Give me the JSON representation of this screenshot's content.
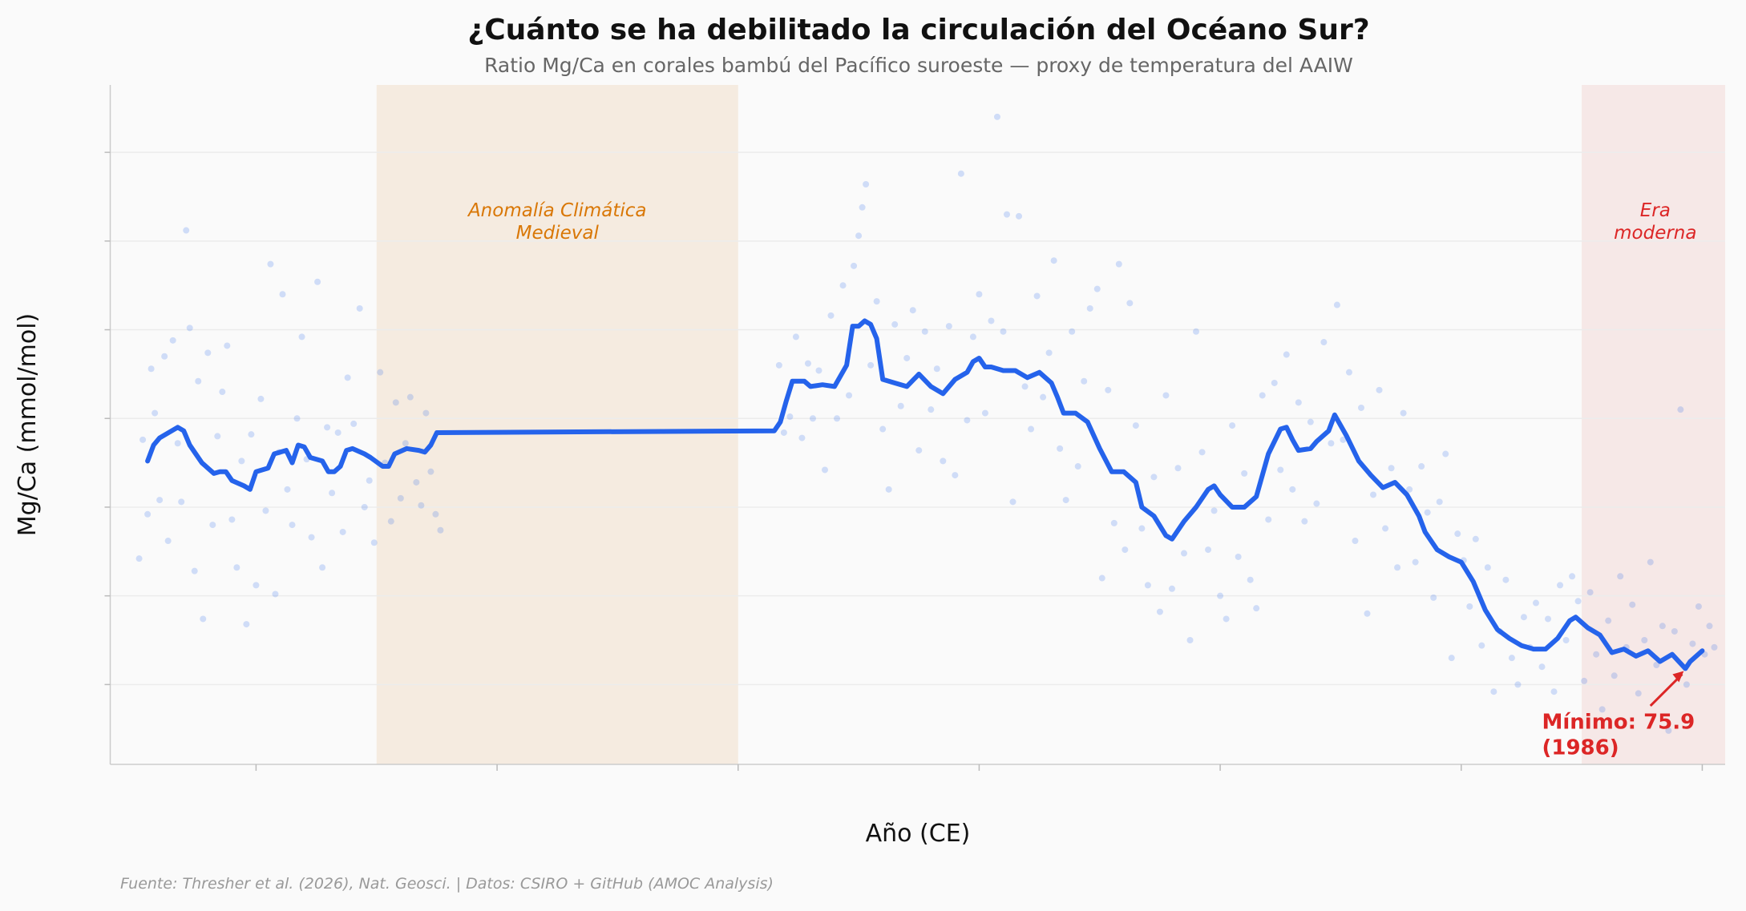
{
  "chart_data": {
    "type": "line",
    "title": "¿Cuánto se ha debilitado la circulación del Océano Sur?",
    "subtitle": "Ratio Mg/Ca en corales bambú del Pacífico suroeste — proxy de temperatura del AAIW",
    "xlabel": "Año (CE)",
    "ylabel": "Mg/Ca (mmol/mol)",
    "xlim": [
      679,
      2019
    ],
    "ylim": [
      70.5,
      108.8
    ],
    "xticks": [
      "800",
      "1000",
      "1200",
      "1400",
      "1600",
      "1800",
      "2000"
    ],
    "yticks": [
      "75",
      "80",
      "85",
      "90",
      "95",
      "100",
      "105"
    ],
    "grid": "horizontal",
    "colors": {
      "line": "#2563eb",
      "points": "#2563eb",
      "medieval": "#f5ebe0",
      "medieval_text": "#d97706",
      "modern": "#f6e8e7",
      "modern_text": "#dc2626",
      "annotation": "#dc2626"
    },
    "spans": [
      {
        "label": "Anomalía Climática\nMedieval",
        "from": 900,
        "to": 1200
      },
      {
        "label": "Era\nmoderna",
        "from": 1900,
        "to": 2019
      }
    ],
    "annotation": {
      "text": "Mínimo: 75.9\n(1986)",
      "x": 1986,
      "y": 75.9
    },
    "footer": "Fuente: Thresher et al. (2026), Nat. Geosci. | Datos: CSIRO + GitHub (AMOC Analysis)",
    "smoothed": [
      [
        710,
        87.6
      ],
      [
        715,
        88.5
      ],
      [
        720,
        88.9
      ],
      [
        730,
        89.3
      ],
      [
        735,
        89.5
      ],
      [
        740,
        89.3
      ],
      [
        745,
        88.5
      ],
      [
        750,
        88.0
      ],
      [
        755,
        87.5
      ],
      [
        760,
        87.2
      ],
      [
        765,
        86.9
      ],
      [
        770,
        87.0
      ],
      [
        775,
        87.0
      ],
      [
        780,
        86.5
      ],
      [
        790,
        86.2
      ],
      [
        795,
        86.0
      ],
      [
        800,
        87.0
      ],
      [
        810,
        87.2
      ],
      [
        815,
        88.0
      ],
      [
        825,
        88.2
      ],
      [
        830,
        87.5
      ],
      [
        835,
        88.5
      ],
      [
        840,
        88.4
      ],
      [
        845,
        87.8
      ],
      [
        855,
        87.6
      ],
      [
        860,
        87.0
      ],
      [
        865,
        87.0
      ],
      [
        870,
        87.3
      ],
      [
        875,
        88.2
      ],
      [
        880,
        88.3
      ],
      [
        890,
        88.0
      ],
      [
        895,
        87.8
      ],
      [
        905,
        87.3
      ],
      [
        910,
        87.3
      ],
      [
        915,
        88.0
      ],
      [
        925,
        88.3
      ],
      [
        935,
        88.2
      ],
      [
        940,
        88.1
      ],
      [
        945,
        88.5
      ],
      [
        950,
        89.2
      ],
      [
        1230,
        89.3
      ],
      [
        1235,
        89.8
      ],
      [
        1240,
        91.0
      ],
      [
        1245,
        92.1
      ],
      [
        1255,
        92.1
      ],
      [
        1260,
        91.8
      ],
      [
        1270,
        91.9
      ],
      [
        1280,
        91.8
      ],
      [
        1290,
        93.0
      ],
      [
        1295,
        95.2
      ],
      [
        1300,
        95.2
      ],
      [
        1305,
        95.5
      ],
      [
        1310,
        95.3
      ],
      [
        1315,
        94.5
      ],
      [
        1320,
        92.2
      ],
      [
        1330,
        92.0
      ],
      [
        1340,
        91.8
      ],
      [
        1350,
        92.5
      ],
      [
        1360,
        91.8
      ],
      [
        1370,
        91.4
      ],
      [
        1380,
        92.2
      ],
      [
        1390,
        92.6
      ],
      [
        1395,
        93.2
      ],
      [
        1400,
        93.4
      ],
      [
        1405,
        92.9
      ],
      [
        1410,
        92.9
      ],
      [
        1420,
        92.7
      ],
      [
        1430,
        92.7
      ],
      [
        1440,
        92.3
      ],
      [
        1450,
        92.6
      ],
      [
        1460,
        92.0
      ],
      [
        1465,
        91.2
      ],
      [
        1470,
        90.3
      ],
      [
        1480,
        90.3
      ],
      [
        1490,
        89.8
      ],
      [
        1500,
        88.3
      ],
      [
        1510,
        87.0
      ],
      [
        1520,
        87.0
      ],
      [
        1530,
        86.4
      ],
      [
        1535,
        85.0
      ],
      [
        1545,
        84.5
      ],
      [
        1555,
        83.4
      ],
      [
        1560,
        83.2
      ],
      [
        1570,
        84.2
      ],
      [
        1580,
        85.0
      ],
      [
        1590,
        86.0
      ],
      [
        1595,
        86.2
      ],
      [
        1600,
        85.7
      ],
      [
        1610,
        85.0
      ],
      [
        1620,
        85.0
      ],
      [
        1630,
        85.6
      ],
      [
        1640,
        88.0
      ],
      [
        1650,
        89.4
      ],
      [
        1655,
        89.5
      ],
      [
        1660,
        88.8
      ],
      [
        1665,
        88.2
      ],
      [
        1675,
        88.3
      ],
      [
        1680,
        88.7
      ],
      [
        1690,
        89.3
      ],
      [
        1695,
        90.2
      ],
      [
        1705,
        89.0
      ],
      [
        1715,
        87.6
      ],
      [
        1725,
        86.8
      ],
      [
        1735,
        86.1
      ],
      [
        1745,
        86.4
      ],
      [
        1755,
        85.7
      ],
      [
        1765,
        84.5
      ],
      [
        1770,
        83.6
      ],
      [
        1780,
        82.6
      ],
      [
        1790,
        82.2
      ],
      [
        1800,
        81.9
      ],
      [
        1810,
        80.8
      ],
      [
        1820,
        79.2
      ],
      [
        1830,
        78.1
      ],
      [
        1840,
        77.6
      ],
      [
        1850,
        77.2
      ],
      [
        1860,
        77.0
      ],
      [
        1870,
        77.0
      ],
      [
        1880,
        77.6
      ],
      [
        1890,
        78.6
      ],
      [
        1895,
        78.8
      ],
      [
        1905,
        78.2
      ],
      [
        1915,
        77.8
      ],
      [
        1925,
        76.8
      ],
      [
        1935,
        77.0
      ],
      [
        1945,
        76.6
      ],
      [
        1955,
        76.9
      ],
      [
        1965,
        76.3
      ],
      [
        1975,
        76.7
      ],
      [
        1986,
        75.9
      ],
      [
        1990,
        76.3
      ],
      [
        2000,
        76.9
      ]
    ],
    "points": [
      [
        703,
        82.1
      ],
      [
        706,
        88.8
      ],
      [
        710,
        84.6
      ],
      [
        713,
        92.8
      ],
      [
        716,
        90.3
      ],
      [
        720,
        85.4
      ],
      [
        724,
        93.5
      ],
      [
        727,
        83.1
      ],
      [
        731,
        94.4
      ],
      [
        735,
        88.6
      ],
      [
        738,
        85.3
      ],
      [
        742,
        100.6
      ],
      [
        745,
        95.1
      ],
      [
        749,
        81.4
      ],
      [
        752,
        92.1
      ],
      [
        756,
        78.7
      ],
      [
        760,
        93.7
      ],
      [
        764,
        84.0
      ],
      [
        768,
        89.0
      ],
      [
        772,
        91.5
      ],
      [
        776,
        94.1
      ],
      [
        780,
        84.3
      ],
      [
        784,
        81.6
      ],
      [
        788,
        87.6
      ],
      [
        792,
        78.4
      ],
      [
        796,
        89.1
      ],
      [
        800,
        80.6
      ],
      [
        804,
        91.1
      ],
      [
        808,
        84.8
      ],
      [
        812,
        98.7
      ],
      [
        816,
        80.1
      ],
      [
        819,
        88.1
      ],
      [
        822,
        97.0
      ],
      [
        826,
        86.0
      ],
      [
        830,
        84.0
      ],
      [
        834,
        90.0
      ],
      [
        838,
        94.6
      ],
      [
        842,
        87.7
      ],
      [
        846,
        83.3
      ],
      [
        851,
        97.7
      ],
      [
        855,
        81.6
      ],
      [
        859,
        89.5
      ],
      [
        863,
        85.8
      ],
      [
        868,
        89.2
      ],
      [
        872,
        83.6
      ],
      [
        876,
        92.3
      ],
      [
        881,
        89.7
      ],
      [
        886,
        96.2
      ],
      [
        890,
        85.0
      ],
      [
        894,
        86.5
      ],
      [
        898,
        83.0
      ],
      [
        903,
        92.6
      ],
      [
        907,
        87.5
      ],
      [
        912,
        84.2
      ],
      [
        916,
        90.9
      ],
      [
        920,
        85.5
      ],
      [
        924,
        88.6
      ],
      [
        928,
        91.2
      ],
      [
        933,
        86.4
      ],
      [
        937,
        85.1
      ],
      [
        941,
        90.3
      ],
      [
        945,
        87.0
      ],
      [
        949,
        84.6
      ],
      [
        953,
        83.7
      ],
      [
        1234,
        93.0
      ],
      [
        1238,
        89.2
      ],
      [
        1243,
        90.1
      ],
      [
        1248,
        94.6
      ],
      [
        1253,
        88.9
      ],
      [
        1258,
        93.1
      ],
      [
        1262,
        90.0
      ],
      [
        1267,
        92.7
      ],
      [
        1272,
        87.1
      ],
      [
        1277,
        95.8
      ],
      [
        1282,
        90.0
      ],
      [
        1287,
        97.5
      ],
      [
        1292,
        91.3
      ],
      [
        1296,
        98.6
      ],
      [
        1300,
        100.3
      ],
      [
        1303,
        101.9
      ],
      [
        1306,
        103.2
      ],
      [
        1310,
        93.0
      ],
      [
        1315,
        96.6
      ],
      [
        1320,
        89.4
      ],
      [
        1325,
        86.0
      ],
      [
        1330,
        95.3
      ],
      [
        1335,
        90.7
      ],
      [
        1340,
        93.4
      ],
      [
        1345,
        96.1
      ],
      [
        1350,
        88.2
      ],
      [
        1355,
        94.9
      ],
      [
        1360,
        90.5
      ],
      [
        1365,
        92.8
      ],
      [
        1370,
        87.6
      ],
      [
        1375,
        95.2
      ],
      [
        1380,
        86.8
      ],
      [
        1385,
        103.8
      ],
      [
        1390,
        89.9
      ],
      [
        1395,
        94.6
      ],
      [
        1400,
        97.0
      ],
      [
        1405,
        90.3
      ],
      [
        1410,
        95.5
      ],
      [
        1415,
        107.0
      ],
      [
        1420,
        94.9
      ],
      [
        1423,
        101.5
      ],
      [
        1428,
        85.3
      ],
      [
        1433,
        101.4
      ],
      [
        1438,
        91.8
      ],
      [
        1443,
        89.4
      ],
      [
        1448,
        96.9
      ],
      [
        1453,
        91.2
      ],
      [
        1458,
        93.7
      ],
      [
        1462,
        98.9
      ],
      [
        1467,
        88.3
      ],
      [
        1472,
        85.4
      ],
      [
        1477,
        94.9
      ],
      [
        1482,
        87.3
      ],
      [
        1487,
        92.1
      ],
      [
        1492,
        96.2
      ],
      [
        1498,
        97.3
      ],
      [
        1502,
        81.0
      ],
      [
        1507,
        91.6
      ],
      [
        1512,
        84.1
      ],
      [
        1516,
        98.7
      ],
      [
        1521,
        82.6
      ],
      [
        1525,
        96.5
      ],
      [
        1530,
        89.6
      ],
      [
        1535,
        83.8
      ],
      [
        1540,
        80.6
      ],
      [
        1545,
        86.7
      ],
      [
        1550,
        79.1
      ],
      [
        1555,
        91.3
      ],
      [
        1560,
        80.4
      ],
      [
        1565,
        87.2
      ],
      [
        1570,
        82.4
      ],
      [
        1575,
        77.5
      ],
      [
        1580,
        94.9
      ],
      [
        1585,
        88.1
      ],
      [
        1590,
        82.6
      ],
      [
        1595,
        84.8
      ],
      [
        1600,
        80.0
      ],
      [
        1605,
        78.7
      ],
      [
        1610,
        89.6
      ],
      [
        1615,
        82.2
      ],
      [
        1620,
        86.9
      ],
      [
        1625,
        80.9
      ],
      [
        1630,
        79.3
      ],
      [
        1635,
        91.3
      ],
      [
        1640,
        84.3
      ],
      [
        1645,
        92.0
      ],
      [
        1650,
        87.1
      ],
      [
        1655,
        93.6
      ],
      [
        1660,
        86.0
      ],
      [
        1665,
        90.9
      ],
      [
        1670,
        84.2
      ],
      [
        1675,
        89.8
      ],
      [
        1680,
        85.2
      ],
      [
        1686,
        94.3
      ],
      [
        1692,
        88.6
      ],
      [
        1697,
        96.4
      ],
      [
        1702,
        88.8
      ],
      [
        1707,
        92.6
      ],
      [
        1712,
        83.1
      ],
      [
        1717,
        90.6
      ],
      [
        1722,
        79.0
      ],
      [
        1727,
        85.7
      ],
      [
        1732,
        91.6
      ],
      [
        1737,
        83.8
      ],
      [
        1742,
        87.2
      ],
      [
        1747,
        81.6
      ],
      [
        1752,
        90.3
      ],
      [
        1757,
        86.0
      ],
      [
        1762,
        81.9
      ],
      [
        1767,
        87.3
      ],
      [
        1772,
        84.7
      ],
      [
        1777,
        79.9
      ],
      [
        1782,
        85.3
      ],
      [
        1787,
        88.0
      ],
      [
        1792,
        76.5
      ],
      [
        1797,
        83.5
      ],
      [
        1802,
        82.0
      ],
      [
        1807,
        79.4
      ],
      [
        1812,
        83.2
      ],
      [
        1817,
        77.2
      ],
      [
        1822,
        81.6
      ],
      [
        1827,
        74.6
      ],
      [
        1832,
        78.0
      ],
      [
        1837,
        80.9
      ],
      [
        1842,
        76.5
      ],
      [
        1847,
        75.0
      ],
      [
        1852,
        78.8
      ],
      [
        1857,
        77.1
      ],
      [
        1862,
        79.6
      ],
      [
        1867,
        76.0
      ],
      [
        1872,
        78.7
      ],
      [
        1877,
        74.6
      ],
      [
        1882,
        80.6
      ],
      [
        1887,
        77.5
      ],
      [
        1892,
        81.1
      ],
      [
        1897,
        79.7
      ],
      [
        1902,
        75.2
      ],
      [
        1907,
        80.2
      ],
      [
        1912,
        76.7
      ],
      [
        1917,
        73.6
      ],
      [
        1922,
        78.6
      ],
      [
        1927,
        75.5
      ],
      [
        1932,
        81.1
      ],
      [
        1937,
        77.1
      ],
      [
        1942,
        79.5
      ],
      [
        1947,
        74.5
      ],
      [
        1952,
        77.5
      ],
      [
        1957,
        81.9
      ],
      [
        1962,
        76.1
      ],
      [
        1967,
        78.3
      ],
      [
        1972,
        72.4
      ],
      [
        1977,
        78.0
      ],
      [
        1982,
        90.5
      ],
      [
        1987,
        75.0
      ],
      [
        1992,
        77.3
      ],
      [
        1997,
        79.4
      ],
      [
        2002,
        76.7
      ],
      [
        2006,
        78.3
      ],
      [
        2010,
        77.1
      ]
    ]
  }
}
